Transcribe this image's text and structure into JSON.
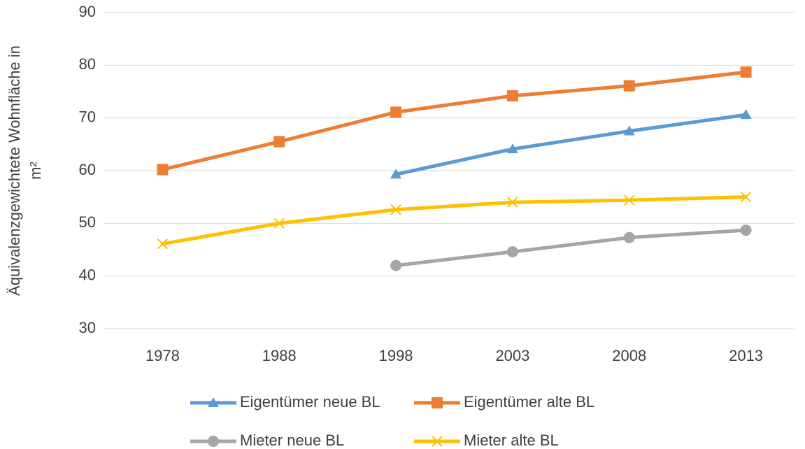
{
  "chart_data": {
    "type": "line",
    "y_label": [
      "Äquivalenzgewichtete Wohnfläche in",
      "m²"
    ],
    "categories": [
      "1978",
      "1988",
      "1998",
      "2003",
      "2008",
      "2013"
    ],
    "ylim": [
      30,
      90
    ],
    "yticks": [
      30,
      40,
      50,
      60,
      70,
      80,
      90
    ],
    "grid": true,
    "series": [
      {
        "name": "Eigentümer neue BL",
        "color": "#5b9bd5",
        "marker": "triangle",
        "values": [
          null,
          null,
          59.3,
          64.1,
          67.5,
          70.6
        ]
      },
      {
        "name": "Eigentümer alte BL",
        "color": "#ed7d31",
        "marker": "square",
        "values": [
          60.2,
          65.5,
          71.1,
          74.2,
          76.1,
          78.7
        ]
      },
      {
        "name": "Mieter neue BL",
        "color": "#a5a5a5",
        "marker": "circle",
        "values": [
          null,
          null,
          42.0,
          44.6,
          47.3,
          48.7
        ]
      },
      {
        "name": "Mieter alte BL",
        "color": "#ffc000",
        "marker": "x",
        "values": [
          46.1,
          50.0,
          52.6,
          54.0,
          54.4,
          55.0
        ]
      }
    ]
  }
}
